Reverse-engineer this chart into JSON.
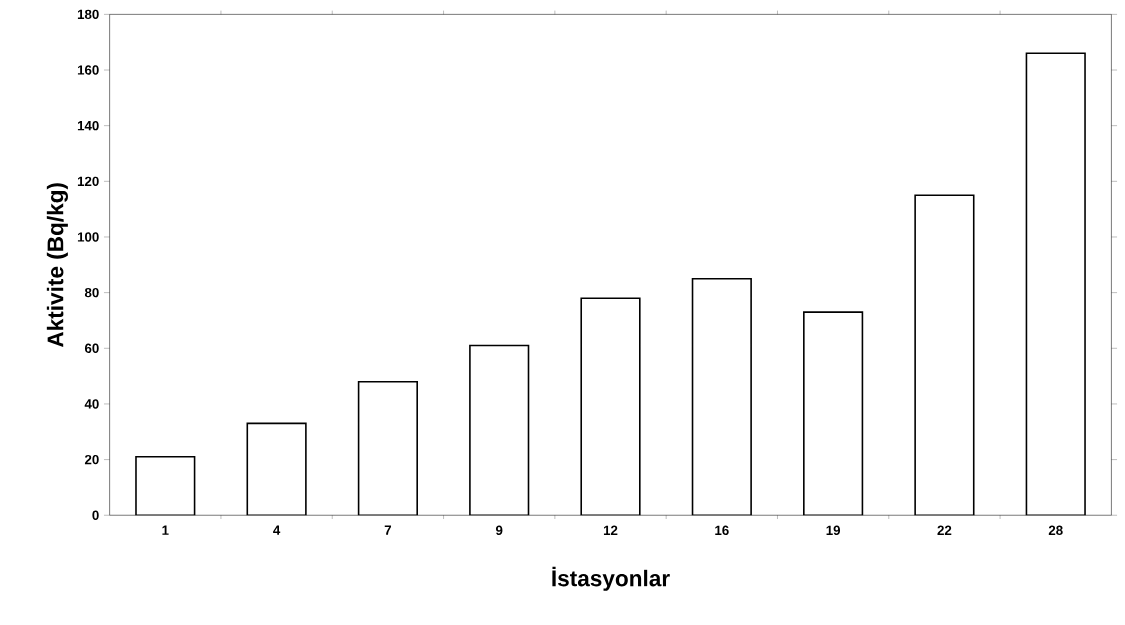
{
  "chart_data": {
    "type": "bar",
    "xlabel": "İstasyonlar",
    "ylabel": "Aktivite (Bq/kg)",
    "categories": [
      "1",
      "4",
      "7",
      "9",
      "12",
      "16",
      "19",
      "22",
      "28"
    ],
    "values": [
      21,
      33,
      48,
      61,
      78,
      85,
      73,
      115,
      166
    ],
    "color": "#ffffff",
    "ylim": [
      0,
      180
    ],
    "yticks": [
      0,
      20,
      40,
      60,
      80,
      100,
      120,
      140,
      160,
      180
    ],
    "grid": false
  }
}
